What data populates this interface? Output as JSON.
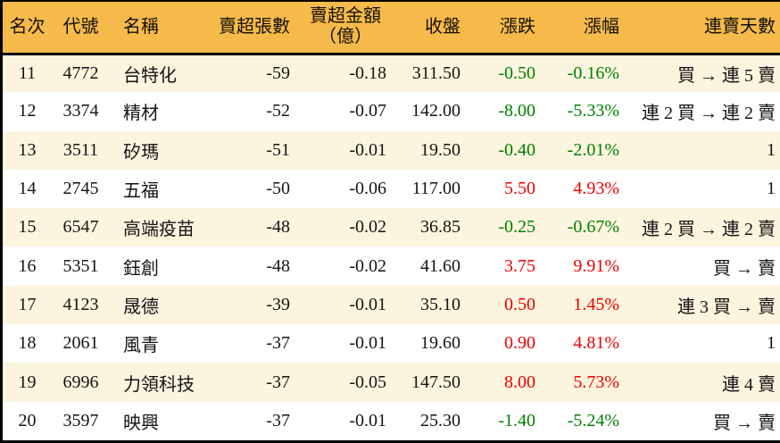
{
  "colors": {
    "header_bg": "#f6ba4a",
    "row_stripe_bg": "#fbf4de",
    "row_plain_bg": "#ffffff",
    "border": "#000000",
    "text": "#141414",
    "up_red": "#ee0000",
    "down_green": "#008000"
  },
  "table": {
    "columns": [
      {
        "key": "rank",
        "label": "名次"
      },
      {
        "key": "code",
        "label": "代號"
      },
      {
        "key": "name",
        "label": "名稱"
      },
      {
        "key": "sell_volume",
        "label": "賣超張數"
      },
      {
        "key": "sell_amount",
        "label": "賣超金額",
        "label2": "（億）"
      },
      {
        "key": "close",
        "label": "收盤"
      },
      {
        "key": "change",
        "label": "漲跌"
      },
      {
        "key": "change_pct",
        "label": "漲幅"
      },
      {
        "key": "streak",
        "label": "連賣天數"
      }
    ],
    "rows": [
      {
        "rank": "11",
        "code": "4772",
        "name": "台特化",
        "sell_volume": "-59",
        "sell_amount": "-0.18",
        "close": "311.50",
        "change": "-0.50",
        "change_pct": "-0.16%",
        "streak": "買 → 連 5 賣",
        "trend": "down"
      },
      {
        "rank": "12",
        "code": "3374",
        "name": "精材",
        "sell_volume": "-52",
        "sell_amount": "-0.07",
        "close": "142.00",
        "change": "-8.00",
        "change_pct": "-5.33%",
        "streak": "連 2 買 → 連 2 賣",
        "trend": "down"
      },
      {
        "rank": "13",
        "code": "3511",
        "name": "矽瑪",
        "sell_volume": "-51",
        "sell_amount": "-0.01",
        "close": "19.50",
        "change": "-0.40",
        "change_pct": "-2.01%",
        "streak": "1",
        "trend": "down"
      },
      {
        "rank": "14",
        "code": "2745",
        "name": "五福",
        "sell_volume": "-50",
        "sell_amount": "-0.06",
        "close": "117.00",
        "change": "5.50",
        "change_pct": "4.93%",
        "streak": "1",
        "trend": "up"
      },
      {
        "rank": "15",
        "code": "6547",
        "name": "高端疫苗",
        "sell_volume": "-48",
        "sell_amount": "-0.02",
        "close": "36.85",
        "change": "-0.25",
        "change_pct": "-0.67%",
        "streak": "連 2 買 → 連 2 賣",
        "trend": "down"
      },
      {
        "rank": "16",
        "code": "5351",
        "name": "鈺創",
        "sell_volume": "-48",
        "sell_amount": "-0.02",
        "close": "41.60",
        "change": "3.75",
        "change_pct": "9.91%",
        "streak": "買 → 賣",
        "trend": "up"
      },
      {
        "rank": "17",
        "code": "4123",
        "name": "晟德",
        "sell_volume": "-39",
        "sell_amount": "-0.01",
        "close": "35.10",
        "change": "0.50",
        "change_pct": "1.45%",
        "streak": "連 3 買 → 賣",
        "trend": "up"
      },
      {
        "rank": "18",
        "code": "2061",
        "name": "風青",
        "sell_volume": "-37",
        "sell_amount": "-0.01",
        "close": "19.60",
        "change": "0.90",
        "change_pct": "4.81%",
        "streak": "1",
        "trend": "up"
      },
      {
        "rank": "19",
        "code": "6996",
        "name": "力領科技",
        "sell_volume": "-37",
        "sell_amount": "-0.05",
        "close": "147.50",
        "change": "8.00",
        "change_pct": "5.73%",
        "streak": "連 4 賣",
        "trend": "up"
      },
      {
        "rank": "20",
        "code": "3597",
        "name": "映興",
        "sell_volume": "-37",
        "sell_amount": "-0.01",
        "close": "25.30",
        "change": "-1.40",
        "change_pct": "-5.24%",
        "streak": "買 → 賣",
        "trend": "down"
      }
    ]
  },
  "chart_data": {
    "type": "table",
    "title": "賣超排行 11-20（Net sell ranking rows 11-20）",
    "columns": [
      "名次",
      "代號",
      "名稱",
      "賣超張數",
      "賣超金額（億）",
      "收盤",
      "漲跌",
      "漲幅",
      "連賣天數"
    ],
    "rows": [
      [
        11,
        "4772",
        "台特化",
        -59,
        -0.18,
        311.5,
        -0.5,
        "-0.16%",
        "買 → 連 5 賣"
      ],
      [
        12,
        "3374",
        "精材",
        -52,
        -0.07,
        142.0,
        -8.0,
        "-5.33%",
        "連 2 買 → 連 2 賣"
      ],
      [
        13,
        "3511",
        "矽瑪",
        -51,
        -0.01,
        19.5,
        -0.4,
        "-2.01%",
        "1"
      ],
      [
        14,
        "2745",
        "五福",
        -50,
        -0.06,
        117.0,
        5.5,
        "4.93%",
        "1"
      ],
      [
        15,
        "6547",
        "高端疫苗",
        -48,
        -0.02,
        36.85,
        -0.25,
        "-0.67%",
        "連 2 買 → 連 2 賣"
      ],
      [
        16,
        "5351",
        "鈺創",
        -48,
        -0.02,
        41.6,
        3.75,
        "9.91%",
        "買 → 賣"
      ],
      [
        17,
        "4123",
        "晟德",
        -39,
        -0.01,
        35.1,
        0.5,
        "1.45%",
        "連 3 買 → 賣"
      ],
      [
        18,
        "2061",
        "風青",
        -37,
        -0.01,
        19.6,
        0.9,
        "4.81%",
        "1"
      ],
      [
        19,
        "6996",
        "力領科技",
        -37,
        -0.05,
        147.5,
        8.0,
        "5.73%",
        "連 4 賣"
      ],
      [
        20,
        "3597",
        "映興",
        -37,
        -0.01,
        25.3,
        -1.4,
        "-5.24%",
        "買 → 賣"
      ]
    ],
    "notes": "positive change = red (#ee0000), negative change = green (#008000); odd rows cream #fbf4de, even rows white; header orange #f6ba4a"
  }
}
